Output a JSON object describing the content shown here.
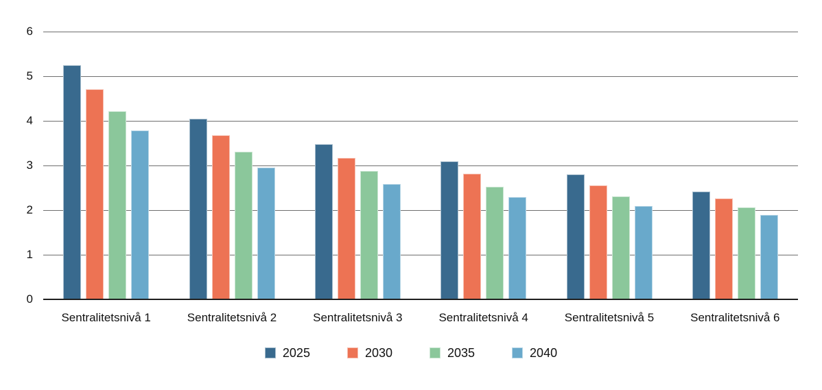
{
  "chart_data": {
    "type": "bar",
    "title": "",
    "xlabel": "",
    "ylabel": "",
    "categories": [
      "Sentralitetsnivå 1",
      "Sentralitetsnivå 2",
      "Sentralitetsnivå 3",
      "Sentralitetsnivå 4",
      "Sentralitetsnivå 5",
      "Sentralitetsnivå 6"
    ],
    "series": [
      {
        "name": "2025",
        "color": "#396A8E",
        "values": [
          5.25,
          4.05,
          3.47,
          3.09,
          2.8,
          2.41
        ]
      },
      {
        "name": "2030",
        "color": "#ED7354",
        "values": [
          4.71,
          3.68,
          3.17,
          2.81,
          2.55,
          2.26
        ]
      },
      {
        "name": "2035",
        "color": "#8BC79B",
        "values": [
          4.22,
          3.3,
          2.87,
          2.53,
          2.31,
          2.06
        ]
      },
      {
        "name": "2040",
        "color": "#69A9CB",
        "values": [
          3.78,
          2.95,
          2.58,
          2.29,
          2.09,
          1.89
        ]
      }
    ],
    "ylim": [
      0,
      6
    ],
    "yticks": [
      0,
      1,
      2,
      3,
      4,
      5,
      6
    ],
    "grid": true,
    "legend_position": "bottom"
  },
  "colors": {
    "background": "#FFFFFF",
    "gridline": "#6F6F6F",
    "axis_line": "#1F1F1F",
    "text": "#111111"
  }
}
